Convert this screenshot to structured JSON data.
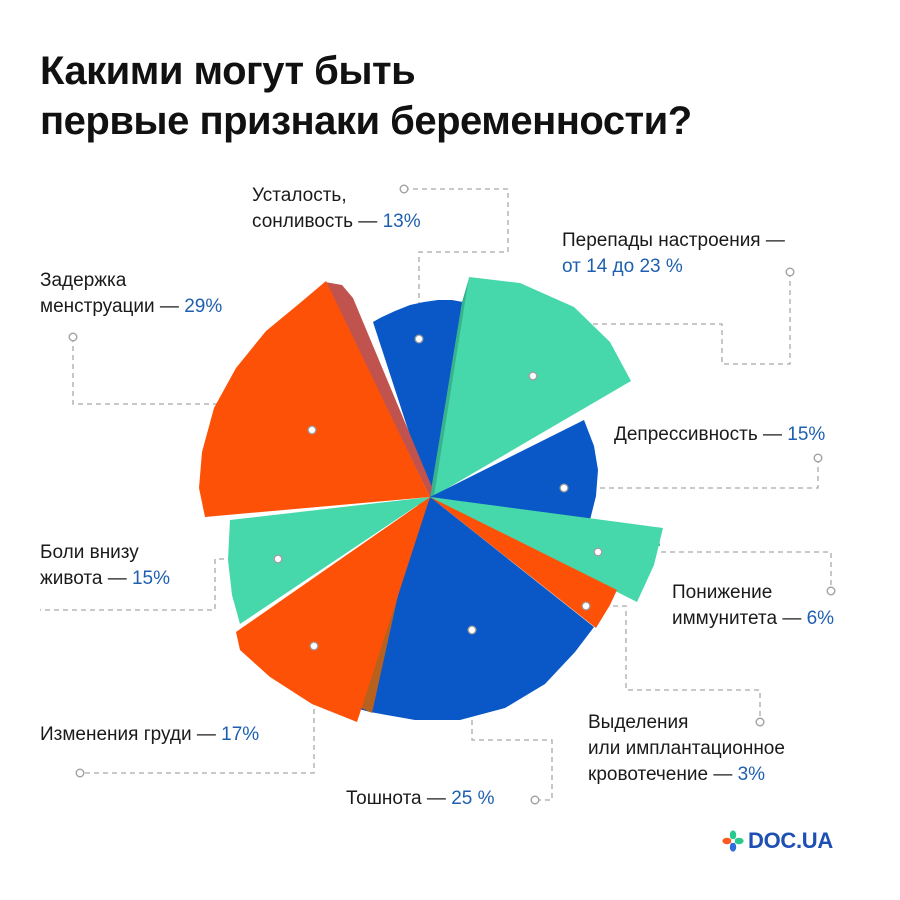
{
  "title": {
    "line1": "Какими могут быть",
    "line2": "первые признаки беременности?"
  },
  "colors": {
    "blue": "#0a57c7",
    "orange": "#fc5107",
    "mint": "#46d8aa",
    "value_text": "#1f5fb0"
  },
  "chart_data": {
    "type": "pie",
    "title": "Какими могут быть первые признаки беременности?",
    "style": "exploded polar-area pie",
    "slices": [
      {
        "label": "Усталость, сонливость",
        "value": 13,
        "value_text": "13%",
        "color": "blue"
      },
      {
        "label": "Перепады настроения",
        "value": 23,
        "value_min": 14,
        "value_max": 23,
        "value_text": "от 14 до 23 %",
        "color": "mint"
      },
      {
        "label": "Депрессивность",
        "value": 15,
        "value_text": "15%",
        "color": "blue"
      },
      {
        "label": "Понижение иммунитета",
        "value": 6,
        "value_text": "6%",
        "color": "mint"
      },
      {
        "label": "Выделения или имплантационное кровотечение",
        "value": 3,
        "value_text": "3%",
        "color": "orange"
      },
      {
        "label": "Тошнота",
        "value": 25,
        "value_text": "25 %",
        "color": "blue"
      },
      {
        "label": "Изменения груди",
        "value": 17,
        "value_text": "17%",
        "color": "orange"
      },
      {
        "label": "Боли внизу живота",
        "value": 15,
        "value_text": "15%",
        "color": "mint"
      },
      {
        "label": "Задержка менструации",
        "value": 29,
        "value_text": "29%",
        "color": "orange"
      }
    ]
  },
  "labels": {
    "fatigue": {
      "l1": "Усталость,",
      "l2": "сонливость —",
      "v": "13%"
    },
    "mood": {
      "l1": "Перепады настроения —",
      "v": "от 14 до 23 %"
    },
    "delay": {
      "l1": "Задержка",
      "l2": "менструации —",
      "v": "29%"
    },
    "depression": {
      "l1": "Депрессивность —",
      "v": "15%"
    },
    "pain": {
      "l1": "Боли внизу",
      "l2": "живота —",
      "v": "15%"
    },
    "immunity": {
      "l1": "Понижение",
      "l2": "иммунитета —",
      "v": "6%"
    },
    "breast": {
      "l1": "Изменения груди —",
      "v": "17%"
    },
    "discharge": {
      "l1": "Выделения",
      "l2": "или имплантационное",
      "l3": "кровотечение —",
      "v": "3%"
    },
    "nausea": {
      "l1": "Тошнота —",
      "v": "25 %"
    }
  },
  "logo": {
    "text": "DOC.UA"
  }
}
